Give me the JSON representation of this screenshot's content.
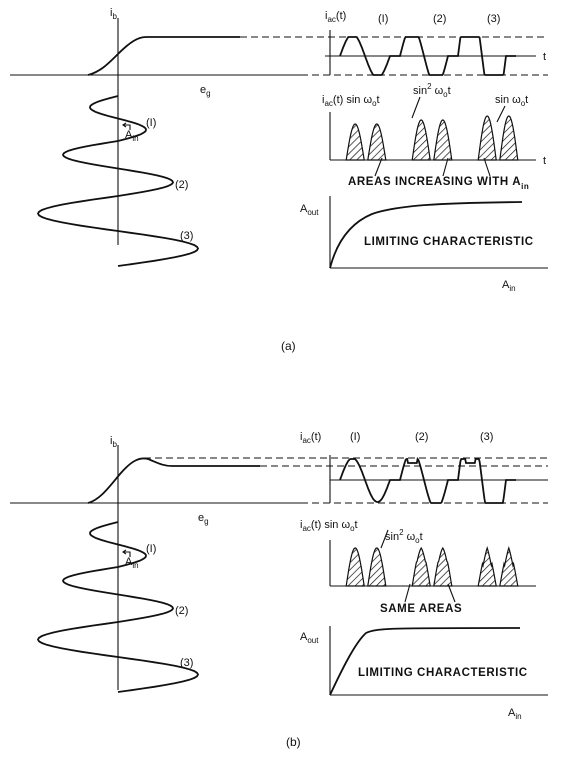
{
  "panel_a": {
    "ib": "i",
    "ib_sub": "b",
    "eg": "e",
    "eg_sub": "g",
    "iac_t": "i",
    "iac_sub": "ac",
    "iac_arg": "(t)",
    "t_label": "t",
    "n1": "(I)",
    "n2": "(2)",
    "n3": "(3)",
    "ain": "A",
    "ain_sub": "in",
    "prod_label": "i",
    "prod_sub": "ac",
    "prod_rest": "(t) sin ω",
    "prod_o": "o",
    "prod_t": "t",
    "sin2_label": "sin",
    "sin2_sup": "2",
    "sin2_rest": " ω",
    "sin2_o": "o",
    "sin2_t": "t",
    "sinw_label": "sin ω",
    "sinw_o": "o",
    "sinw_t": "t",
    "areas_text": "AREAS  INCREASING WITH A",
    "areas_sub": "in",
    "aout": "A",
    "aout_sub": "out",
    "limiting": "LIMITING  CHARACTERISTIC",
    "caption": "(a)"
  },
  "panel_b": {
    "ib": "i",
    "ib_sub": "b",
    "eg": "e",
    "eg_sub": "g",
    "iac_t": "i",
    "iac_sub": "ac",
    "iac_arg": "(t)",
    "n1": "(I)",
    "n2": "(2)",
    "n3": "(3)",
    "ain": "A",
    "ain_sub": "in",
    "prod_label": "i",
    "prod_sub": "ac",
    "prod_rest": "(t) sin ω",
    "prod_o": "o",
    "prod_t": "t",
    "sin2_label": "sin",
    "sin2_sup": "2",
    "sin2_rest": " ω",
    "sin2_o": "o",
    "sin2_t": "t",
    "same_areas": "SAME  AREAS",
    "aout": "A",
    "aout_sub": "out",
    "limiting": "LIMITING  CHARACTERISTIC",
    "caption": "(b)"
  }
}
